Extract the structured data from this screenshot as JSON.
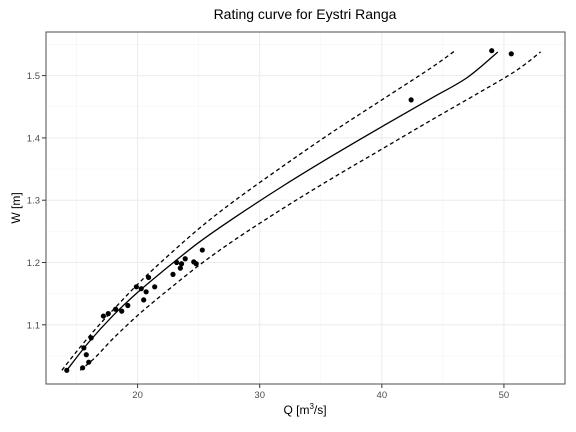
{
  "chart_data": {
    "type": "scatter",
    "title": "Rating curve for Eystri Ranga",
    "xlabel": {
      "prefix": "Q  [m",
      "sup": "3",
      "suffix": "/s]"
    },
    "ylabel": "W [m]",
    "xlim": [
      12.5,
      55
    ],
    "ylim": [
      1.005,
      1.57
    ],
    "x_ticks": [
      20,
      30,
      40,
      50
    ],
    "x_tick_labels": [
      "20",
      "30",
      "40",
      "50"
    ],
    "y_ticks": [
      1.1,
      1.2,
      1.3,
      1.4,
      1.5
    ],
    "y_tick_labels": [
      "1.1",
      "1.2",
      "1.3",
      "1.4",
      "1.5"
    ],
    "grid": true,
    "legend": "none",
    "series": [
      {
        "kind": "points",
        "x": [
          14.2,
          15.6,
          15.5,
          15.8,
          16.0,
          16.2,
          17.2,
          17.6,
          18.2,
          18.7,
          19.2,
          19.9,
          20.3,
          20.5,
          20.7,
          20.9,
          21.4,
          22.9,
          23.2,
          23.5,
          23.6,
          23.9,
          24.6,
          24.8,
          25.3,
          42.4,
          49.0,
          50.6
        ],
        "y": [
          1.027,
          1.063,
          1.031,
          1.052,
          1.04,
          1.079,
          1.114,
          1.118,
          1.125,
          1.122,
          1.131,
          1.161,
          1.158,
          1.14,
          1.153,
          1.176,
          1.161,
          1.181,
          1.2,
          1.191,
          1.198,
          1.206,
          1.201,
          1.198,
          1.22,
          1.461,
          1.54,
          1.535
        ]
      },
      {
        "kind": "fit",
        "style": "solid",
        "x": [
          14.2,
          16,
          18,
          20,
          22,
          25,
          28,
          32,
          36,
          40,
          44,
          47,
          49.5
        ],
        "y": [
          1.027,
          1.072,
          1.115,
          1.152,
          1.185,
          1.232,
          1.273,
          1.324,
          1.372,
          1.418,
          1.463,
          1.497,
          1.538
        ]
      },
      {
        "kind": "upper",
        "style": "dashed",
        "x": [
          13.8,
          15,
          16.5,
          18,
          20,
          22,
          25,
          28,
          32,
          36,
          40,
          44,
          46
        ],
        "y": [
          1.027,
          1.057,
          1.092,
          1.124,
          1.165,
          1.202,
          1.254,
          1.3,
          1.356,
          1.41,
          1.461,
          1.512,
          1.54
        ]
      },
      {
        "kind": "lower",
        "style": "dashed",
        "x": [
          15.3,
          16.5,
          18,
          20,
          22,
          25,
          28,
          32,
          36,
          40,
          44,
          48,
          51,
          53
        ],
        "y": [
          1.027,
          1.047,
          1.078,
          1.115,
          1.148,
          1.195,
          1.237,
          1.288,
          1.336,
          1.382,
          1.428,
          1.473,
          1.508,
          1.538
        ]
      }
    ]
  }
}
